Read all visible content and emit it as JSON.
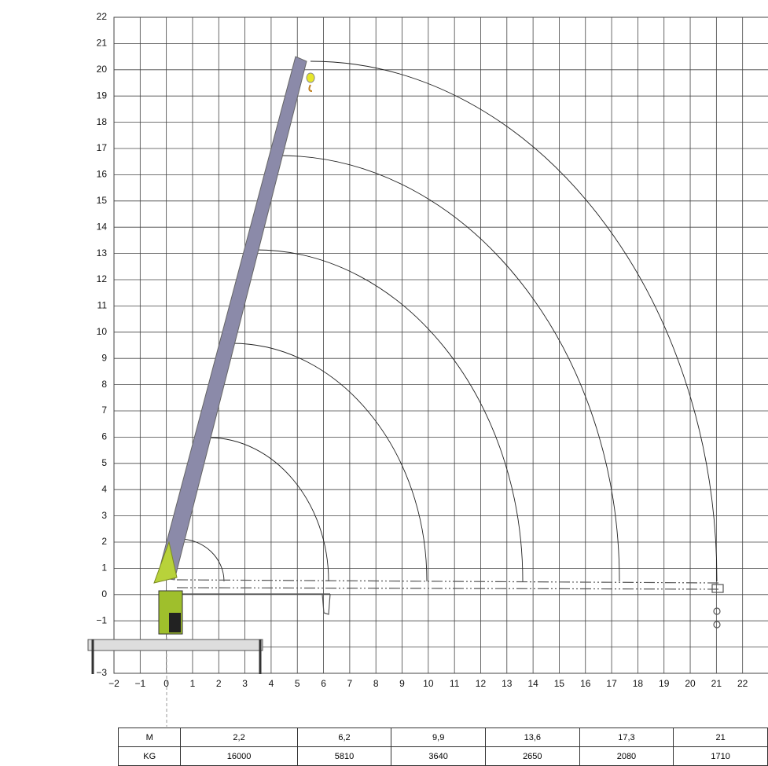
{
  "chart_data": {
    "type": "range",
    "xlim": [
      -2,
      23
    ],
    "ylim": [
      -3,
      22
    ],
    "xticks": [
      {
        "value": -2,
        "label": "−2"
      },
      {
        "value": -1,
        "label": "−1"
      },
      0,
      1,
      2,
      3,
      4,
      5,
      6,
      7,
      8,
      9,
      10,
      11,
      12,
      13,
      14,
      15,
      16,
      17,
      18,
      19,
      20,
      21,
      22
    ],
    "yticks": [
      {
        "value": -3,
        "label": "−3"
      },
      {
        "value": -2,
        "label": "−2"
      },
      {
        "value": -1,
        "label": "−1"
      },
      0,
      1,
      2,
      3,
      4,
      5,
      6,
      7,
      8,
      9,
      10,
      11,
      12,
      13,
      14,
      15,
      16,
      17,
      18,
      19,
      20,
      21,
      22
    ],
    "grid": true
  },
  "table": {
    "rows": [
      [
        "M",
        "2,2",
        "6,2",
        "9,9",
        "13,6",
        "17,3",
        "21"
      ],
      [
        "KG",
        "16000",
        "5810",
        "3640",
        "2650",
        "2080",
        "1710"
      ]
    ]
  }
}
